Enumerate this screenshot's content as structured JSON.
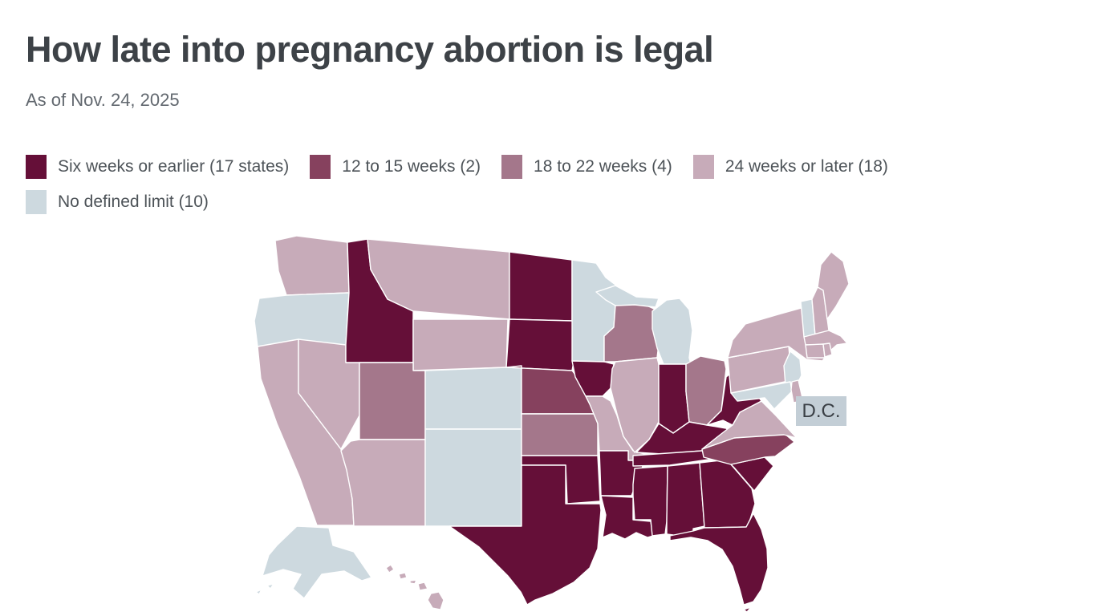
{
  "title": "How late into pregnancy abortion is legal",
  "subtitle": "As of Nov. 24, 2025",
  "legend": {
    "items": [
      {
        "label": "Six weeks or earlier (17 states)",
        "color": "#650f38",
        "category": "six_weeks_or_earlier"
      },
      {
        "label": "12 to 15 weeks (2)",
        "color": "#86415e",
        "category": "12_to_15_weeks"
      },
      {
        "label": "18 to 22 weeks (4)",
        "color": "#a4778b",
        "category": "18_to_22_weeks"
      },
      {
        "label": "24 weeks or later (18)",
        "color": "#c7abb9",
        "category": "24_weeks_or_later"
      },
      {
        "label": "No defined limit (10)",
        "color": "#cdd9df",
        "category": "no_defined_limit"
      }
    ]
  },
  "map": {
    "dc_label": "D.C.",
    "dc_color": "#c3ced6",
    "states": [
      {
        "abbr": "WA",
        "name": "Washington",
        "category": "24_weeks_or_later"
      },
      {
        "abbr": "OR",
        "name": "Oregon",
        "category": "no_defined_limit"
      },
      {
        "abbr": "CA",
        "name": "California",
        "category": "24_weeks_or_later"
      },
      {
        "abbr": "NV",
        "name": "Nevada",
        "category": "24_weeks_or_later"
      },
      {
        "abbr": "ID",
        "name": "Idaho",
        "category": "six_weeks_or_earlier"
      },
      {
        "abbr": "MT",
        "name": "Montana",
        "category": "24_weeks_or_later"
      },
      {
        "abbr": "WY",
        "name": "Wyoming",
        "category": "24_weeks_or_later"
      },
      {
        "abbr": "UT",
        "name": "Utah",
        "category": "18_to_22_weeks"
      },
      {
        "abbr": "CO",
        "name": "Colorado",
        "category": "no_defined_limit"
      },
      {
        "abbr": "AZ",
        "name": "Arizona",
        "category": "24_weeks_or_later"
      },
      {
        "abbr": "NM",
        "name": "New Mexico",
        "category": "no_defined_limit"
      },
      {
        "abbr": "ND",
        "name": "North Dakota",
        "category": "six_weeks_or_earlier"
      },
      {
        "abbr": "SD",
        "name": "South Dakota",
        "category": "six_weeks_or_earlier"
      },
      {
        "abbr": "NE",
        "name": "Nebraska",
        "category": "12_to_15_weeks"
      },
      {
        "abbr": "KS",
        "name": "Kansas",
        "category": "18_to_22_weeks"
      },
      {
        "abbr": "OK",
        "name": "Oklahoma",
        "category": "six_weeks_or_earlier"
      },
      {
        "abbr": "TX",
        "name": "Texas",
        "category": "six_weeks_or_earlier"
      },
      {
        "abbr": "MN",
        "name": "Minnesota",
        "category": "no_defined_limit"
      },
      {
        "abbr": "IA",
        "name": "Iowa",
        "category": "six_weeks_or_earlier"
      },
      {
        "abbr": "MO",
        "name": "Missouri",
        "category": "24_weeks_or_later"
      },
      {
        "abbr": "AR",
        "name": "Arkansas",
        "category": "six_weeks_or_earlier"
      },
      {
        "abbr": "LA",
        "name": "Louisiana",
        "category": "six_weeks_or_earlier"
      },
      {
        "abbr": "WI",
        "name": "Wisconsin",
        "category": "18_to_22_weeks"
      },
      {
        "abbr": "IL",
        "name": "Illinois",
        "category": "24_weeks_or_later"
      },
      {
        "abbr": "MI",
        "name": "Michigan",
        "category": "no_defined_limit"
      },
      {
        "abbr": "IN",
        "name": "Indiana",
        "category": "six_weeks_or_earlier"
      },
      {
        "abbr": "OH",
        "name": "Ohio",
        "category": "18_to_22_weeks"
      },
      {
        "abbr": "KY",
        "name": "Kentucky",
        "category": "six_weeks_or_earlier"
      },
      {
        "abbr": "TN",
        "name": "Tennessee",
        "category": "six_weeks_or_earlier"
      },
      {
        "abbr": "MS",
        "name": "Mississippi",
        "category": "six_weeks_or_earlier"
      },
      {
        "abbr": "AL",
        "name": "Alabama",
        "category": "six_weeks_or_earlier"
      },
      {
        "abbr": "GA",
        "name": "Georgia",
        "category": "six_weeks_or_earlier"
      },
      {
        "abbr": "FL",
        "name": "Florida",
        "category": "six_weeks_or_earlier"
      },
      {
        "abbr": "SC",
        "name": "South Carolina",
        "category": "six_weeks_or_earlier"
      },
      {
        "abbr": "NC",
        "name": "North Carolina",
        "category": "12_to_15_weeks"
      },
      {
        "abbr": "VA",
        "name": "Virginia",
        "category": "24_weeks_or_later"
      },
      {
        "abbr": "WV",
        "name": "West Virginia",
        "category": "six_weeks_or_earlier"
      },
      {
        "abbr": "PA",
        "name": "Pennsylvania",
        "category": "24_weeks_or_later"
      },
      {
        "abbr": "NY",
        "name": "New York",
        "category": "24_weeks_or_later"
      },
      {
        "abbr": "NJ",
        "name": "New Jersey",
        "category": "no_defined_limit"
      },
      {
        "abbr": "MD",
        "name": "Maryland",
        "category": "no_defined_limit"
      },
      {
        "abbr": "DE",
        "name": "Delaware",
        "category": "24_weeks_or_later"
      },
      {
        "abbr": "VT",
        "name": "Vermont",
        "category": "no_defined_limit"
      },
      {
        "abbr": "NH",
        "name": "New Hampshire",
        "category": "24_weeks_or_later"
      },
      {
        "abbr": "ME",
        "name": "Maine",
        "category": "24_weeks_or_later"
      },
      {
        "abbr": "MA",
        "name": "Massachusetts",
        "category": "24_weeks_or_later"
      },
      {
        "abbr": "CT",
        "name": "Connecticut",
        "category": "24_weeks_or_later"
      },
      {
        "abbr": "RI",
        "name": "Rhode Island",
        "category": "24_weeks_or_later"
      },
      {
        "abbr": "AK",
        "name": "Alaska",
        "category": "no_defined_limit"
      },
      {
        "abbr": "HI",
        "name": "Hawaii",
        "category": "24_weeks_or_later"
      },
      {
        "abbr": "DC",
        "name": "District of Columbia",
        "category": "no_defined_limit"
      }
    ]
  },
  "chart_data": {
    "type": "choropleth",
    "geography": "United States (states + D.C.)",
    "title": "How late into pregnancy abortion is legal",
    "subtitle": "As of Nov. 24, 2025",
    "legend_position": "top-left",
    "categories": [
      {
        "label": "Six weeks or earlier",
        "count": 17,
        "color": "#650f38",
        "states": [
          "ID",
          "ND",
          "SD",
          "IA",
          "IN",
          "KY",
          "WV",
          "TN",
          "SC",
          "GA",
          "FL",
          "AL",
          "MS",
          "LA",
          "AR",
          "OK",
          "TX"
        ]
      },
      {
        "label": "12 to 15 weeks",
        "count": 2,
        "color": "#86415e",
        "states": [
          "NE",
          "NC"
        ]
      },
      {
        "label": "18 to 22 weeks",
        "count": 4,
        "color": "#a4778b",
        "states": [
          "UT",
          "KS",
          "WI",
          "OH"
        ]
      },
      {
        "label": "24 weeks or later",
        "count": 18,
        "color": "#c7abb9",
        "states": [
          "WA",
          "MT",
          "WY",
          "NV",
          "CA",
          "AZ",
          "HI",
          "MO",
          "IL",
          "VA",
          "PA",
          "NY",
          "ME",
          "NH",
          "MA",
          "CT",
          "RI",
          "DE"
        ]
      },
      {
        "label": "No defined limit",
        "count": 10,
        "color": "#cdd9df",
        "states": [
          "OR",
          "NM",
          "CO",
          "MN",
          "MI",
          "VT",
          "NJ",
          "MD",
          "AK",
          "DC"
        ]
      }
    ]
  }
}
